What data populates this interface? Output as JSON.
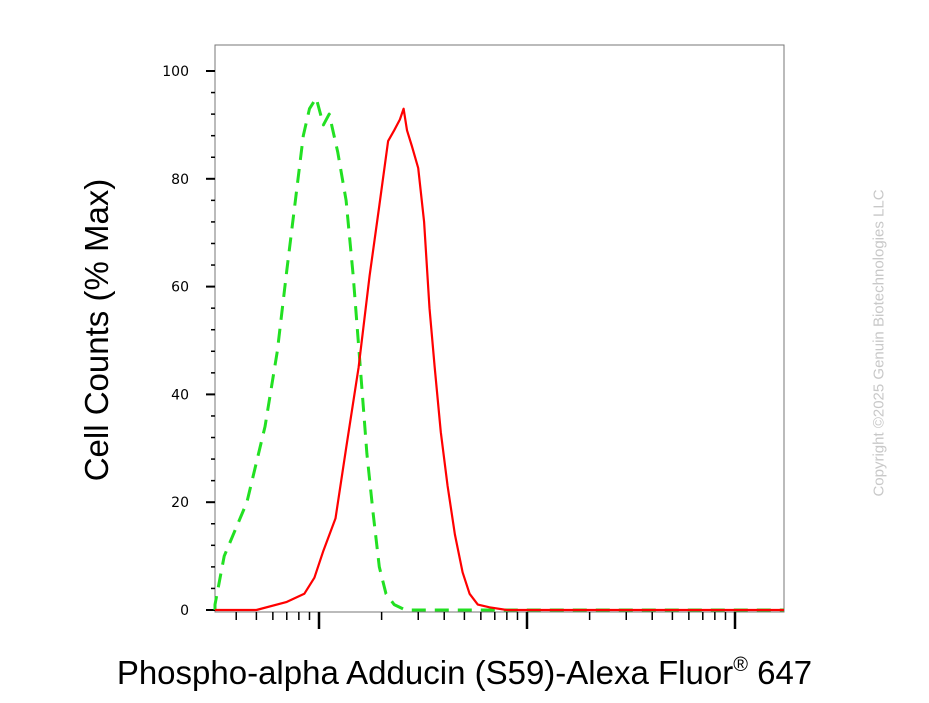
{
  "chart_data": {
    "type": "line",
    "subtype": "flow-cytometry-histogram",
    "xlabel_main": "Phospho-alpha Adducin (S59)-Alexa Fluor",
    "xlabel_sup": "®",
    "xlabel_end": " 647",
    "ylabel": "Cell Counts (% Max)",
    "ylim": [
      0,
      105
    ],
    "yticks": [
      0,
      20,
      40,
      60,
      80,
      100
    ],
    "ytick_labels": [
      "0",
      "20",
      "40",
      "60",
      "80",
      "100"
    ],
    "xscale": "log",
    "xlim": [
      1,
      12000
    ],
    "xticks_major": [
      10,
      100,
      1000
    ],
    "grid": false,
    "legend": "none",
    "series": [
      {
        "color": "#22e022",
        "style": "dashed",
        "points": [
          [
            1,
            0
          ],
          [
            2.3,
            1
          ],
          [
            3.5,
            10
          ],
          [
            4.5,
            20
          ],
          [
            5.5,
            34
          ],
          [
            6.3,
            48
          ],
          [
            7,
            63
          ],
          [
            7.7,
            76
          ],
          [
            8.4,
            88
          ],
          [
            9,
            93
          ],
          [
            9.7,
            95
          ],
          [
            10.5,
            90
          ],
          [
            11.2,
            92
          ],
          [
            12.3,
            85
          ],
          [
            13.5,
            76
          ],
          [
            14.6,
            62
          ],
          [
            15.8,
            45
          ],
          [
            17,
            29
          ],
          [
            18.2,
            18
          ],
          [
            19.5,
            8
          ],
          [
            21,
            3
          ],
          [
            23,
            1
          ],
          [
            26,
            0
          ],
          [
            12000,
            0
          ]
        ]
      },
      {
        "color": "#ff0000",
        "style": "solid",
        "points": [
          [
            1,
            0
          ],
          [
            5,
            0
          ],
          [
            7,
            1.5
          ],
          [
            8.5,
            3
          ],
          [
            9.5,
            6
          ],
          [
            10.5,
            11
          ],
          [
            12,
            17
          ],
          [
            13.5,
            30
          ],
          [
            15.5,
            45
          ],
          [
            17.5,
            62
          ],
          [
            19.5,
            75
          ],
          [
            21.5,
            87
          ],
          [
            23,
            89
          ],
          [
            24.5,
            91
          ],
          [
            25.5,
            93
          ],
          [
            26.5,
            89
          ],
          [
            28,
            86
          ],
          [
            30,
            82
          ],
          [
            32,
            72
          ],
          [
            34,
            56
          ],
          [
            36,
            45
          ],
          [
            38.5,
            33
          ],
          [
            41.5,
            23
          ],
          [
            45,
            14
          ],
          [
            49,
            7
          ],
          [
            53,
            3
          ],
          [
            58,
            1
          ],
          [
            66,
            0.5
          ],
          [
            80,
            0
          ],
          [
            12000,
            0
          ]
        ]
      }
    ]
  },
  "watermark": "Copyright ©2025 Genuin Biotechnologies LLC"
}
